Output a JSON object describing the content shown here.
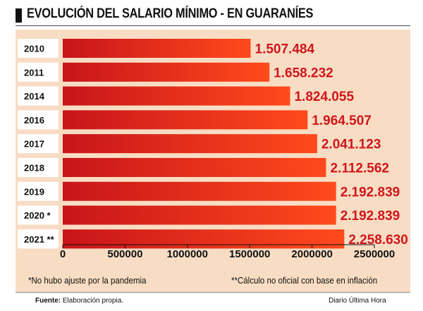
{
  "title": "EVOLUCIÓN DEL SALARIO MÍNIMO - EN GUARANÍES",
  "notes": {
    "left": "*No hubo ajuste por la pandemia",
    "right": "**Cálculo no oficial con base en inflación"
  },
  "footer": {
    "source_label": "Fuente:",
    "source_text": "Elaboración propia.",
    "credit": "Diario Última Hora"
  },
  "colors": {
    "bar_left": "#c8141a",
    "bar_right": "#ff4a1c",
    "value_text": "#d0161c",
    "panel": "#f8ddc4"
  },
  "chart_data": {
    "type": "bar",
    "orientation": "horizontal",
    "categories": [
      "2010",
      "2011",
      "2014",
      "2016",
      "2017",
      "2018",
      "2019",
      "2020 *",
      "2021 **"
    ],
    "values": [
      1507484,
      1658232,
      1824055,
      1964507,
      2041123,
      2112562,
      2192839,
      2192839,
      2258630
    ],
    "value_labels": [
      "1.507.484",
      "1.658.232",
      "1.824.055",
      "1.964.507",
      "2.041.123",
      "2.112.562",
      "2.192.839",
      "2.192.839",
      "2.258.630"
    ],
    "xlim": [
      0,
      2500000
    ],
    "xticks": [
      0,
      500000,
      1000000,
      1500000,
      2000000,
      2500000
    ],
    "xtick_labels": [
      "0",
      "500000",
      "1000000",
      "1500000",
      "2000000",
      "2500000"
    ],
    "grid": false,
    "legend": "none"
  }
}
